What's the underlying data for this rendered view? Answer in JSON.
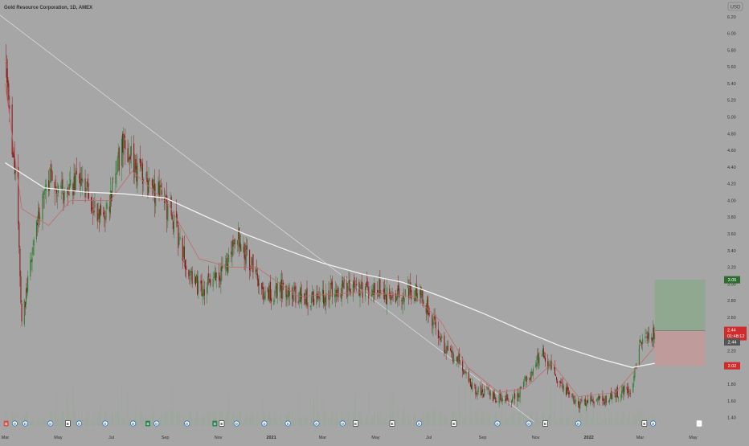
{
  "header": {
    "title": "Gold Resource Corporation, 1D, AMEX",
    "currency": "USD"
  },
  "price_labels": {
    "take_profit": "3.05",
    "last_price": "2.44",
    "countdown": "01:48:12",
    "close_marker": "2.44",
    "stop_loss": "2.02"
  },
  "colors": {
    "background": "#a6a6a6",
    "up_candle": "#2e7d32",
    "down_candle": "#8b1a1a",
    "sma_long": "#f2f2f2",
    "ema_short": "#c46a6a",
    "trendline": "#d8d8d8",
    "profit_zone": "#8fa88f",
    "loss_zone": "#c09b9b",
    "volume": "#9aa89a"
  },
  "chart_data": {
    "type": "candlestick",
    "title": "Gold Resource Corporation, 1D, AMEX",
    "ylim": [
      1.3,
      6.4
    ],
    "y_ticks": [
      "6.20",
      "6.00",
      "5.80",
      "5.60",
      "5.40",
      "5.20",
      "5.00",
      "4.80",
      "4.60",
      "4.40",
      "4.20",
      "4.00",
      "3.80",
      "3.60",
      "3.40",
      "3.20",
      "3.00",
      "2.80",
      "2.60",
      "2.40",
      "2.20",
      "2.00",
      "1.80",
      "1.60",
      "1.40"
    ],
    "x_ticks": [
      "Mar",
      "May",
      "Jul",
      "Sep",
      "Nov",
      "2021",
      "Mar",
      "May",
      "Jul",
      "Sep",
      "Nov",
      "2022",
      "Mar",
      "May"
    ],
    "close_path": [
      [
        "2020-03-01",
        5.6
      ],
      [
        "2020-03-08",
        4.8
      ],
      [
        "2020-03-15",
        4.0
      ],
      [
        "2020-03-20",
        2.5
      ],
      [
        "2020-03-28",
        3.1
      ],
      [
        "2020-04-10",
        3.9
      ],
      [
        "2020-04-25",
        4.3
      ],
      [
        "2020-05-10",
        4.0
      ],
      [
        "2020-05-25",
        4.3
      ],
      [
        "2020-06-10",
        3.9
      ],
      [
        "2020-06-25",
        3.8
      ],
      [
        "2020-07-05",
        4.2
      ],
      [
        "2020-07-15",
        4.75
      ],
      [
        "2020-07-28",
        4.4
      ],
      [
        "2020-08-10",
        4.2
      ],
      [
        "2020-08-25",
        4.05
      ],
      [
        "2020-09-10",
        3.8
      ],
      [
        "2020-09-25",
        3.2
      ],
      [
        "2020-10-10",
        2.95
      ],
      [
        "2020-10-25",
        3.0
      ],
      [
        "2020-11-10",
        3.25
      ],
      [
        "2020-11-25",
        3.55
      ],
      [
        "2020-12-10",
        3.2
      ],
      [
        "2020-12-25",
        2.85
      ],
      [
        "2021-01-10",
        2.95
      ],
      [
        "2021-01-25",
        2.9
      ],
      [
        "2021-02-15",
        2.8
      ],
      [
        "2021-03-10",
        2.9
      ],
      [
        "2021-03-30",
        2.95
      ],
      [
        "2021-04-20",
        2.9
      ],
      [
        "2021-05-05",
        2.95
      ],
      [
        "2021-05-20",
        2.8
      ],
      [
        "2021-06-05",
        2.9
      ],
      [
        "2021-06-20",
        2.9
      ],
      [
        "2021-07-05",
        2.6
      ],
      [
        "2021-07-20",
        2.2
      ],
      [
        "2021-08-05",
        2.1
      ],
      [
        "2021-08-20",
        1.75
      ],
      [
        "2021-09-05",
        1.7
      ],
      [
        "2021-09-25",
        1.6
      ],
      [
        "2021-10-10",
        1.65
      ],
      [
        "2021-10-25",
        1.9
      ],
      [
        "2021-11-08",
        2.2
      ],
      [
        "2021-11-20",
        1.95
      ],
      [
        "2021-12-05",
        1.75
      ],
      [
        "2021-12-20",
        1.55
      ],
      [
        "2022-01-05",
        1.6
      ],
      [
        "2022-01-20",
        1.6
      ],
      [
        "2022-02-05",
        1.7
      ],
      [
        "2022-02-20",
        1.75
      ],
      [
        "2022-03-01",
        2.3
      ],
      [
        "2022-03-10",
        2.35
      ],
      [
        "2022-03-18",
        2.44
      ]
    ],
    "sma_long": [
      [
        "2020-03-01",
        4.45
      ],
      [
        "2020-04-15",
        4.15
      ],
      [
        "2020-06-01",
        4.1
      ],
      [
        "2020-07-15",
        4.08
      ],
      [
        "2020-09-01",
        4.03
      ],
      [
        "2020-10-15",
        3.82
      ],
      [
        "2020-12-01",
        3.6
      ],
      [
        "2021-01-15",
        3.42
      ],
      [
        "2021-03-01",
        3.25
      ],
      [
        "2021-04-15",
        3.12
      ],
      [
        "2021-06-01",
        3.02
      ],
      [
        "2021-07-15",
        2.85
      ],
      [
        "2021-09-01",
        2.65
      ],
      [
        "2021-10-15",
        2.45
      ],
      [
        "2021-12-01",
        2.25
      ],
      [
        "2022-01-15",
        2.1
      ],
      [
        "2022-02-20",
        2.0
      ],
      [
        "2022-03-18",
        2.05
      ]
    ],
    "ema_short": [
      [
        "2020-03-01",
        5.4
      ],
      [
        "2020-03-20",
        3.9
      ],
      [
        "2020-04-20",
        3.7
      ],
      [
        "2020-05-15",
        4.0
      ],
      [
        "2020-06-30",
        4.0
      ],
      [
        "2020-07-25",
        4.35
      ],
      [
        "2020-09-05",
        3.95
      ],
      [
        "2020-10-10",
        3.3
      ],
      [
        "2020-11-15",
        3.2
      ],
      [
        "2020-12-15",
        3.2
      ],
      [
        "2021-02-01",
        2.85
      ],
      [
        "2021-04-15",
        2.9
      ],
      [
        "2021-06-15",
        2.85
      ],
      [
        "2021-07-15",
        2.55
      ],
      [
        "2021-08-15",
        2.0
      ],
      [
        "2021-09-20",
        1.7
      ],
      [
        "2021-10-20",
        1.75
      ],
      [
        "2021-11-20",
        2.05
      ],
      [
        "2021-12-20",
        1.65
      ],
      [
        "2022-02-01",
        1.7
      ],
      [
        "2022-03-18",
        2.25
      ]
    ],
    "trendline": [
      [
        "2020-02-20",
        6.25
      ],
      [
        "2021-10-30",
        1.35
      ]
    ],
    "position": {
      "entry": 2.44,
      "target": 3.05,
      "stop": 2.02,
      "start": "2022-03-18",
      "end": "2022-05-15"
    }
  },
  "event_markers": {
    "items": [
      {
        "date": "2020-03-02",
        "type": "S",
        "color": "#d9534f"
      },
      {
        "date": "2020-03-12",
        "type": "D",
        "color": "#2f6fb8"
      },
      {
        "date": "2020-03-24",
        "type": "D",
        "color": "#2f6fb8"
      },
      {
        "date": "2020-04-22",
        "type": "D",
        "color": "#2f6fb8"
      },
      {
        "date": "2020-05-12",
        "type": "E",
        "color": "#333333"
      },
      {
        "date": "2020-05-25",
        "type": "D",
        "color": "#2f6fb8"
      },
      {
        "date": "2020-06-24",
        "type": "D",
        "color": "#2f6fb8"
      },
      {
        "date": "2020-07-26",
        "type": "D",
        "color": "#2f6fb8"
      },
      {
        "date": "2020-08-12",
        "type": "S",
        "color": "#2e8b57"
      },
      {
        "date": "2020-08-22",
        "type": "D",
        "color": "#2f6fb8"
      },
      {
        "date": "2020-09-26",
        "type": "D",
        "color": "#2f6fb8"
      },
      {
        "date": "2020-10-28",
        "type": "S",
        "color": "#2e8b57"
      },
      {
        "date": "2020-11-05",
        "type": "E",
        "color": "#333333"
      },
      {
        "date": "2020-11-22",
        "type": "D",
        "color": "#2f6fb8"
      },
      {
        "date": "2020-12-24",
        "type": "D",
        "color": "#2f6fb8"
      },
      {
        "date": "2021-01-20",
        "type": "D",
        "color": "#2f6fb8"
      },
      {
        "date": "2021-02-22",
        "type": "D",
        "color": "#2f6fb8"
      },
      {
        "date": "2021-03-24",
        "type": "D",
        "color": "#2f6fb8"
      },
      {
        "date": "2021-04-08",
        "type": "E",
        "color": "#333333"
      },
      {
        "date": "2021-05-20",
        "type": "E",
        "color": "#333333"
      },
      {
        "date": "2021-06-20",
        "type": "D",
        "color": "#2f6fb8"
      },
      {
        "date": "2021-07-30",
        "type": "E",
        "color": "#333333"
      },
      {
        "date": "2021-09-18",
        "type": "D",
        "color": "#2f6fb8"
      },
      {
        "date": "2021-10-24",
        "type": "D",
        "color": "#2f6fb8"
      },
      {
        "date": "2021-11-12",
        "type": "E",
        "color": "#333333"
      },
      {
        "date": "2021-12-20",
        "type": "D",
        "color": "#2f6fb8"
      },
      {
        "date": "2022-03-06",
        "type": "E",
        "color": "#333333"
      },
      {
        "date": "2022-03-16",
        "type": "D",
        "color": "#2f6fb8"
      },
      {
        "date": "2022-05-08",
        "type": "E",
        "color": "#f0f0f0"
      }
    ]
  }
}
